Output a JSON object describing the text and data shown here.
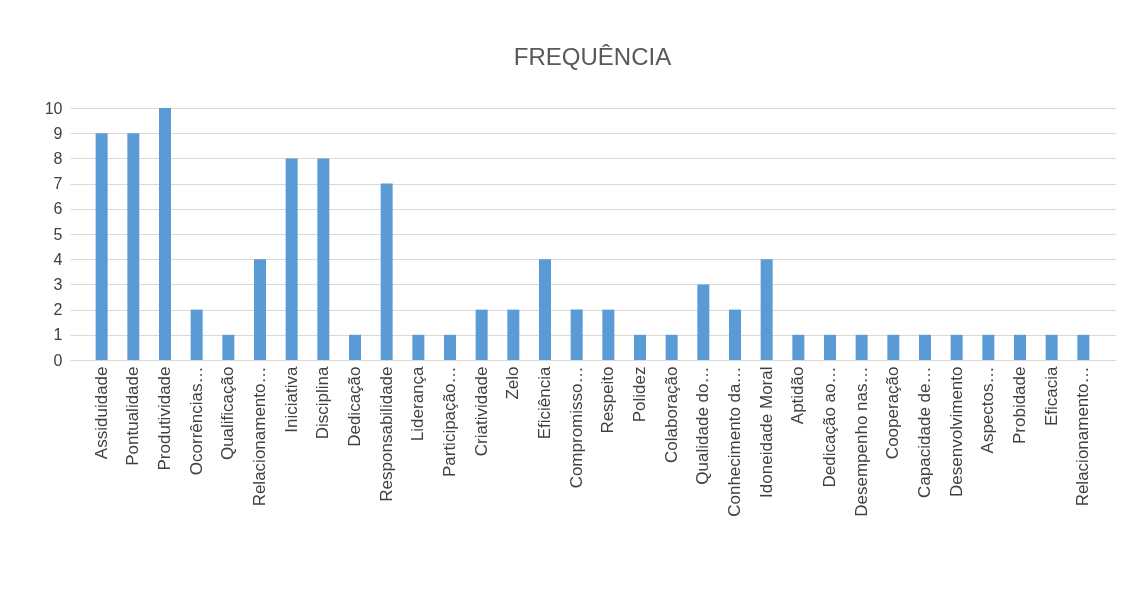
{
  "chart_data": {
    "type": "bar",
    "title": "FREQUÊNCIA",
    "categories": [
      "Assiduidade",
      "Pontualidade",
      "Produtividade",
      "Ocorrências…",
      "Qualificação",
      "Relacionamento…",
      "Iniciativa",
      "Disciplina",
      "Dedicação",
      "Responsabilidade",
      "Liderança",
      "Participação…",
      "Criatividade",
      "Zelo",
      "Eficiência",
      "Compromisso…",
      "Respeito",
      "Polidez",
      "Colaboração",
      "Qualidade do…",
      "Conhecimento da…",
      "Idoneidade Moral",
      "Aptidão",
      "Dedicação ao…",
      "Desempenho nas…",
      "Cooperação",
      "Capacidade de…",
      "Desenvolvimento",
      "Aspectos…",
      "Probidade",
      "Eficacia",
      "Relacionamento…"
    ],
    "values": [
      9,
      9,
      10,
      2,
      1,
      4,
      8,
      8,
      1,
      7,
      1,
      1,
      2,
      2,
      4,
      2,
      2,
      1,
      1,
      3,
      2,
      4,
      1,
      1,
      1,
      1,
      1,
      1,
      1,
      1,
      1,
      1
    ],
    "color": "#5b9bd5",
    "ylim": [
      0,
      10
    ],
    "yticks": [
      0,
      1,
      2,
      3,
      4,
      5,
      6,
      7,
      8,
      9,
      10
    ],
    "grid": "y"
  }
}
